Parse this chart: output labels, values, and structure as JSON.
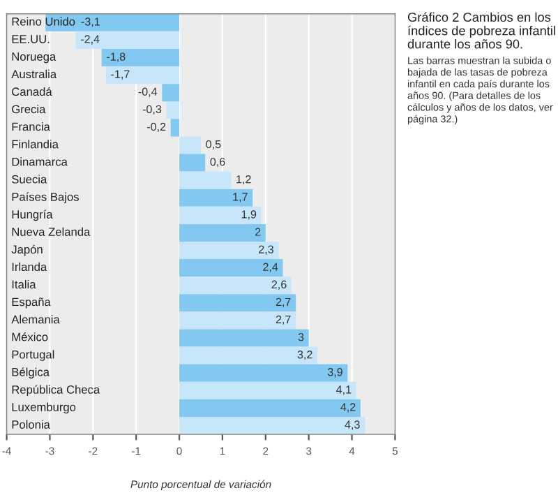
{
  "chart_data": {
    "type": "bar",
    "orientation": "horizontal",
    "title": "Gráfico 2 Cambios en los índices de pobreza infantil durante los años 90.",
    "subtitle": "Las barras muestran la subida o bajada de las tasas de pobreza infantil en cada país durante los años 90. (Para detalles de los cálculos y años de los datos, ver página 32.)",
    "xlabel": "Punto porcentual de variación",
    "categories": [
      "Reino Unido",
      "EE.UU.",
      "Noruega",
      "Australia",
      "Canadá",
      "Grecia",
      "Francia",
      "Finlandia",
      "Dinamarca",
      "Suecia",
      "Países Bajos",
      "Hungría",
      "Nueva Zelanda",
      "Japón",
      "Irlanda",
      "Italia",
      "España",
      "Alemania",
      "México",
      "Portugal",
      "Bélgica",
      "República Checa",
      "Luxemburgo",
      "Polonia"
    ],
    "values": [
      -3.1,
      -2.4,
      -1.8,
      -1.7,
      -0.4,
      -0.3,
      -0.2,
      0.5,
      0.6,
      1.2,
      1.7,
      1.9,
      2,
      2.3,
      2.4,
      2.6,
      2.7,
      2.7,
      3,
      3.2,
      3.9,
      4.1,
      4.2,
      4.3
    ],
    "value_labels": [
      "-3,1",
      "-2,4",
      "-1,8",
      "-1,7",
      "-0,4",
      "-0,3",
      "-0,2",
      "0,5",
      "0,6",
      "1,2",
      "1,7",
      "1,9",
      "2",
      "2,3",
      "2,4",
      "2,6",
      "2,7",
      "2,7",
      "3",
      "3,2",
      "3,9",
      "4,1",
      "4,2",
      "4,3"
    ],
    "colors": [
      "#82c8f0",
      "#c8e6fa",
      "#82c8f0",
      "#c8e6fa",
      "#82c8f0",
      "#c8e6fa",
      "#82c8f0",
      "#c8e6fa",
      "#82c8f0",
      "#c8e6fa",
      "#82c8f0",
      "#c8e6fa",
      "#82c8f0",
      "#c8e6fa",
      "#82c8f0",
      "#c8e6fa",
      "#82c8f0",
      "#c8e6fa",
      "#82c8f0",
      "#c8e6fa",
      "#82c8f0",
      "#c8e6fa",
      "#82c8f0",
      "#c8e6fa"
    ],
    "xlim": [
      -4,
      5
    ],
    "xticks": [
      -4,
      -3,
      -2,
      -1,
      0,
      1,
      2,
      3,
      4,
      5
    ],
    "grid": "x"
  }
}
